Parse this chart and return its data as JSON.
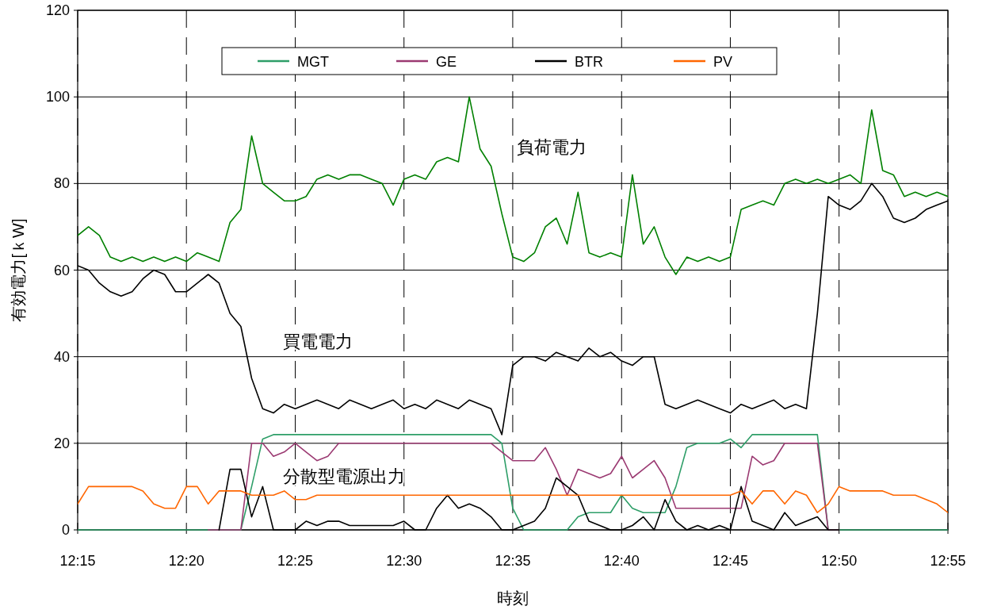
{
  "chart_data": {
    "type": "line",
    "xlabel": "時刻",
    "ylabel": "有効電力[ｋW]",
    "x": [
      12.25,
      12.2583,
      12.2667,
      12.275,
      12.2833,
      12.2917,
      12.3,
      12.3083,
      12.3167,
      12.325,
      12.3333,
      12.3417,
      12.35,
      12.3583,
      12.3667,
      12.375,
      12.3833,
      12.3917,
      12.4,
      12.4083,
      12.4167,
      12.425,
      12.4333,
      12.4417,
      12.45,
      12.4583,
      12.4667,
      12.475,
      12.4833,
      12.4917,
      12.5,
      12.5083,
      12.5167,
      12.525,
      12.5333,
      12.5417,
      12.55,
      12.5583,
      12.5667,
      12.575,
      12.5833,
      12.5917,
      12.6,
      12.6083,
      12.6167,
      12.625,
      12.6333,
      12.6417,
      12.65,
      12.6583,
      12.6667,
      12.675,
      12.6833,
      12.6917,
      12.7,
      12.7083,
      12.7167,
      12.725,
      12.7333,
      12.7417,
      12.75,
      12.7583,
      12.7667,
      12.775,
      12.7833,
      12.7917,
      12.8,
      12.8083,
      12.8167,
      12.825,
      12.8333,
      12.8417,
      12.85,
      12.8583,
      12.8667,
      12.875,
      12.8833,
      12.8917,
      12.9,
      12.9083,
      12.9167
    ],
    "series": [
      {
        "color": "#008000",
        "values": [
          68,
          70,
          68,
          63,
          62,
          63,
          62,
          63,
          62,
          63,
          62,
          64,
          63,
          62,
          71,
          74,
          91,
          80,
          78,
          76,
          76,
          77,
          81,
          82,
          81,
          82,
          82,
          81,
          80,
          75,
          81,
          82,
          81,
          85,
          86,
          85,
          100,
          88,
          84,
          73,
          63,
          62,
          64,
          70,
          72,
          66,
          78,
          64,
          63,
          64,
          63,
          82,
          66,
          70,
          63,
          59,
          63,
          62,
          63,
          62,
          63,
          74,
          75,
          76,
          75,
          80,
          81,
          80,
          81,
          80,
          81,
          82,
          80,
          97,
          83,
          82,
          77,
          78,
          77,
          78,
          77
        ]
      },
      {
        "color": "#000000",
        "values": [
          61,
          60,
          57,
          55,
          54,
          55,
          58,
          60,
          59,
          55,
          55,
          57,
          59,
          57,
          50,
          47,
          35,
          28,
          27,
          29,
          28,
          29,
          30,
          29,
          28,
          30,
          29,
          28,
          29,
          30,
          28,
          29,
          28,
          30,
          29,
          28,
          30,
          29,
          28,
          22,
          38,
          40,
          40,
          39,
          41,
          40,
          39,
          42,
          40,
          41,
          39,
          38,
          40,
          40,
          29,
          28,
          29,
          30,
          29,
          28,
          27,
          29,
          28,
          29,
          30,
          28,
          29,
          28,
          50,
          77,
          75,
          74,
          76,
          80,
          77,
          72,
          71,
          72,
          74,
          75,
          76
        ]
      },
      {
        "name": "MGT",
        "color": "#2e9e68",
        "values": [
          0,
          0,
          0,
          0,
          0,
          0,
          0,
          0,
          0,
          0,
          0,
          0,
          0,
          0,
          0,
          0,
          10,
          21,
          22,
          22,
          22,
          22,
          22,
          22,
          22,
          22,
          22,
          22,
          22,
          22,
          22,
          22,
          22,
          22,
          22,
          22,
          22,
          22,
          22,
          20,
          5,
          0,
          0,
          0,
          0,
          0,
          3,
          4,
          4,
          4,
          8,
          5,
          4,
          4,
          4,
          10,
          19,
          20,
          20,
          20,
          21,
          19,
          22,
          22,
          22,
          22,
          22,
          22,
          22,
          0,
          0,
          0,
          0,
          0,
          0,
          0,
          0,
          0,
          0,
          0,
          0
        ]
      },
      {
        "name": "GE",
        "color": "#9b3a72",
        "values": [
          null,
          null,
          null,
          null,
          null,
          null,
          null,
          null,
          null,
          null,
          null,
          null,
          0,
          0,
          0,
          0,
          20,
          20,
          17,
          18,
          20,
          18,
          16,
          17,
          20,
          20,
          20,
          20,
          20,
          20,
          20,
          20,
          20,
          20,
          20,
          20,
          20,
          20,
          20,
          18,
          16,
          16,
          16,
          19,
          14,
          8,
          14,
          13,
          12,
          13,
          17,
          12,
          14,
          16,
          12,
          5,
          5,
          5,
          5,
          5,
          5,
          5,
          17,
          15,
          16,
          20,
          20,
          20,
          20,
          0,
          0,
          null,
          null,
          null,
          null,
          null,
          null,
          null,
          null,
          null,
          null
        ]
      },
      {
        "name": "BTR",
        "color": "#000000",
        "values": [
          null,
          null,
          null,
          null,
          null,
          null,
          null,
          null,
          null,
          null,
          null,
          null,
          null,
          0,
          14,
          14,
          3,
          10,
          0,
          0,
          0,
          2,
          1,
          2,
          2,
          1,
          1,
          1,
          1,
          1,
          2,
          0,
          0,
          5,
          8,
          5,
          6,
          5,
          3,
          0,
          0,
          1,
          2,
          5,
          12,
          10,
          8,
          2,
          1,
          0,
          0,
          1,
          3,
          0,
          7,
          2,
          0,
          1,
          0,
          1,
          0,
          10,
          2,
          1,
          0,
          4,
          1,
          2,
          3,
          0,
          0,
          null,
          null,
          null,
          null,
          null,
          null,
          null,
          null,
          null,
          null
        ]
      },
      {
        "name": "PV",
        "color": "#ff6600",
        "values": [
          6,
          10,
          10,
          10,
          10,
          10,
          9,
          6,
          5,
          5,
          10,
          10,
          6,
          9,
          9,
          9,
          8,
          8,
          8,
          9,
          7,
          7,
          8,
          8,
          8,
          8,
          8,
          8,
          8,
          8,
          8,
          8,
          8,
          8,
          8,
          8,
          8,
          8,
          8,
          8,
          8,
          8,
          8,
          8,
          8,
          8,
          8,
          8,
          8,
          8,
          8,
          8,
          8,
          8,
          8,
          8,
          8,
          8,
          8,
          8,
          8,
          9,
          6,
          9,
          9,
          6,
          9,
          8,
          4,
          6,
          10,
          9,
          9,
          9,
          9,
          8,
          8,
          8,
          7,
          6,
          4
        ]
      }
    ],
    "xlim": [
      12.25,
      12.9167
    ],
    "xticks": [
      {
        "value": 12.25,
        "label": "12:15"
      },
      {
        "value": 12.3333,
        "label": "12:20"
      },
      {
        "value": 12.4167,
        "label": "12:25"
      },
      {
        "value": 12.5,
        "label": "12:30"
      },
      {
        "value": 12.5833,
        "label": "12:35"
      },
      {
        "value": 12.6667,
        "label": "12:40"
      },
      {
        "value": 12.75,
        "label": "12:45"
      },
      {
        "value": 12.8333,
        "label": "12:50"
      },
      {
        "value": 12.9167,
        "label": "12:55"
      }
    ],
    "ylim": [
      0,
      120
    ],
    "yticks": [
      0,
      20,
      40,
      60,
      80,
      100,
      120
    ],
    "grid": true,
    "legend": "top",
    "annotations": [
      "負荷電力",
      "買電電力",
      "分散型電源出力"
    ]
  }
}
